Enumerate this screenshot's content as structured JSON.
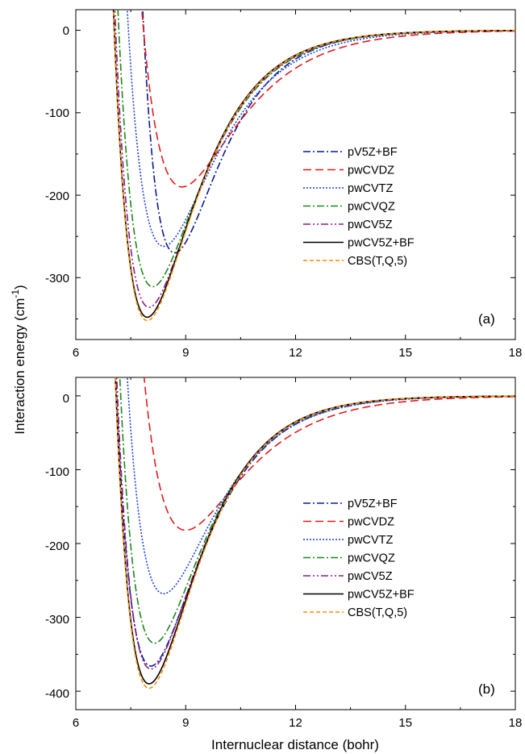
{
  "figure": {
    "ylabel": "Interaction energy (cm",
    "ylabel_superscript": "-1",
    "ylabel_suffix": ")",
    "xlabel": "Internuclear distance (bohr)"
  },
  "chart_data": [
    {
      "type": "line",
      "panel_label": "(a)",
      "xlim": [
        6,
        18
      ],
      "ylim": [
        -375,
        25
      ],
      "xticks": [
        "6",
        "9",
        "12",
        "15",
        "18"
      ],
      "yticks": [
        "0",
        "-100",
        "-200",
        "-300"
      ],
      "legend_position": "right",
      "series": [
        {
          "name": "pV5Z+BF",
          "color": "#0a1a8c",
          "dash": "dashdot",
          "re": 8.7,
          "De": 270,
          "a": 0.82
        },
        {
          "name": "pwCVDZ",
          "color": "#e31a1c",
          "dash": "dash",
          "re": 8.9,
          "De": 190,
          "a": 0.66
        },
        {
          "name": "pwCVTZ",
          "color": "#1f3fe0",
          "dash": "dot",
          "re": 8.4,
          "De": 262,
          "a": 0.72
        },
        {
          "name": "pwCVQZ",
          "color": "#1a8a1a",
          "dash": "dashdot",
          "re": 8.1,
          "De": 311,
          "a": 0.75
        },
        {
          "name": "pwCV5Z",
          "color": "#8b1a8b",
          "dash": "dashdotdot",
          "re": 8.0,
          "De": 336,
          "a": 0.76
        },
        {
          "name": "pwCV5Z+BF",
          "color": "#000000",
          "dash": "solid",
          "re": 7.95,
          "De": 348,
          "a": 0.77
        },
        {
          "name": "CBS(T,Q,5)",
          "color": "#ff8c00",
          "dash": "shortdash",
          "re": 7.95,
          "De": 352,
          "a": 0.77
        }
      ]
    },
    {
      "type": "line",
      "panel_label": "(b)",
      "xlim": [
        6,
        18
      ],
      "ylim": [
        -425,
        25
      ],
      "xticks": [
        "6",
        "9",
        "12",
        "15",
        "18"
      ],
      "yticks": [
        "0",
        "-100",
        "-200",
        "-300",
        "-400"
      ],
      "legend_position": "right",
      "series": [
        {
          "name": "pV5Z+BF",
          "color": "#0a1a8c",
          "dash": "dashdot",
          "re": 8.05,
          "De": 366,
          "a": 0.74
        },
        {
          "name": "pwCVDZ",
          "color": "#e31a1c",
          "dash": "dash",
          "re": 9.0,
          "De": 182,
          "a": 0.64
        },
        {
          "name": "pwCVTZ",
          "color": "#1f3fe0",
          "dash": "dot",
          "re": 8.4,
          "De": 268,
          "a": 0.72
        },
        {
          "name": "pwCVQZ",
          "color": "#1a8a1a",
          "dash": "dashdot",
          "re": 8.15,
          "De": 335,
          "a": 0.75
        },
        {
          "name": "pwCV5Z",
          "color": "#8b1a8b",
          "dash": "dashdotdot",
          "re": 8.05,
          "De": 370,
          "a": 0.76
        },
        {
          "name": "pwCV5Z+BF",
          "color": "#000000",
          "dash": "solid",
          "re": 8.0,
          "De": 390,
          "a": 0.77
        },
        {
          "name": "CBS(T,Q,5)",
          "color": "#ff8c00",
          "dash": "shortdash",
          "re": 8.0,
          "De": 396,
          "a": 0.77
        }
      ]
    }
  ]
}
